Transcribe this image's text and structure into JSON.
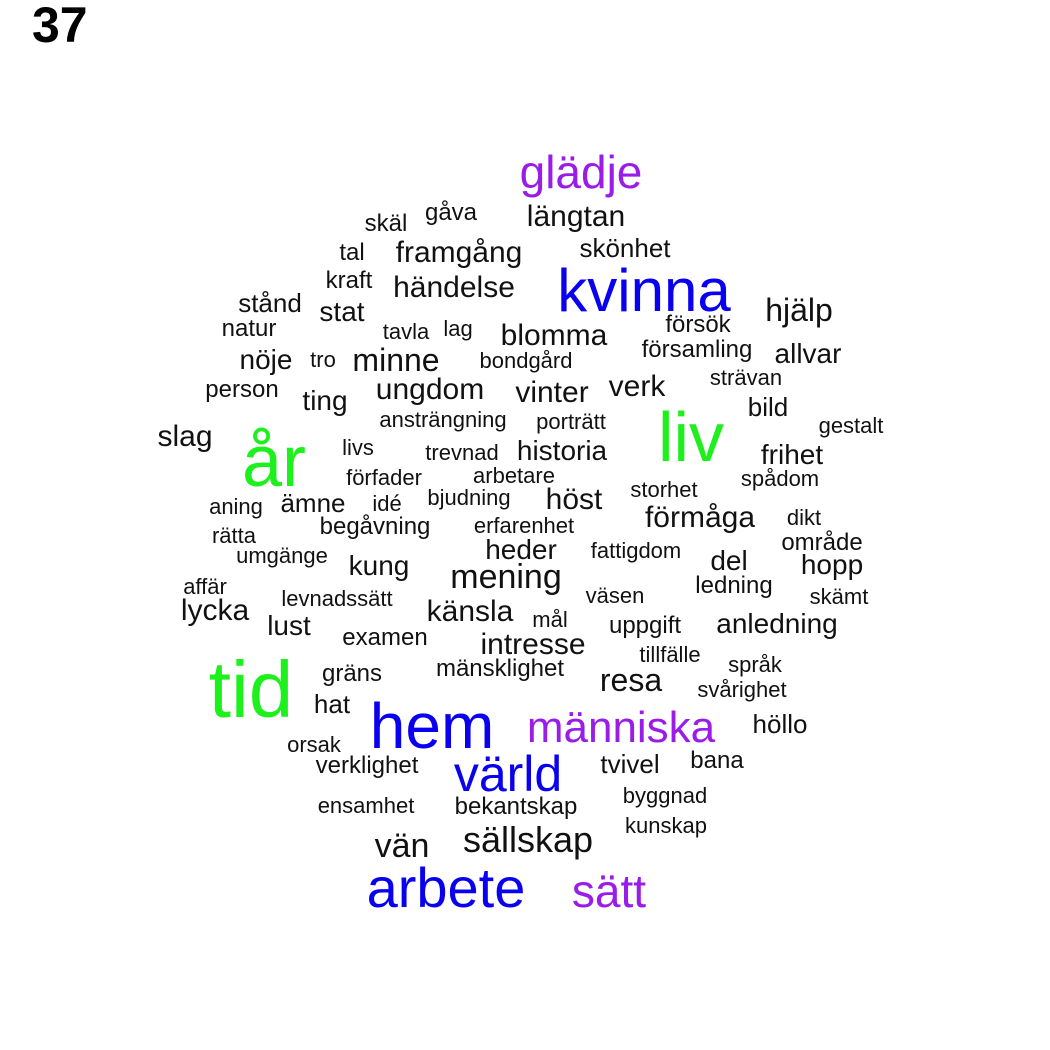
{
  "panel_label": "37",
  "colors": {
    "green": "#1ef01e",
    "blue": "#0a00f0",
    "purple": "#9a1ce8",
    "black": "#111111"
  },
  "words": [
    {
      "text": "glädje",
      "color": "purple"
    },
    {
      "text": "skäl",
      "color": "black"
    },
    {
      "text": "gåva",
      "color": "black"
    },
    {
      "text": "längtan",
      "color": "black"
    },
    {
      "text": "tal",
      "color": "black"
    },
    {
      "text": "framgång",
      "color": "black"
    },
    {
      "text": "skönhet",
      "color": "black"
    },
    {
      "text": "kraft",
      "color": "black"
    },
    {
      "text": "händelse",
      "color": "black"
    },
    {
      "text": "kvinna",
      "color": "blue"
    },
    {
      "text": "stånd",
      "color": "black"
    },
    {
      "text": "stat",
      "color": "black"
    },
    {
      "text": "hjälp",
      "color": "black"
    },
    {
      "text": "natur",
      "color": "black"
    },
    {
      "text": "tavla",
      "color": "black"
    },
    {
      "text": "lag",
      "color": "black"
    },
    {
      "text": "blomma",
      "color": "black"
    },
    {
      "text": "försök",
      "color": "black"
    },
    {
      "text": "nöje",
      "color": "black"
    },
    {
      "text": "tro",
      "color": "black"
    },
    {
      "text": "minne",
      "color": "black"
    },
    {
      "text": "bondgård",
      "color": "black"
    },
    {
      "text": "församling",
      "color": "black"
    },
    {
      "text": "allvar",
      "color": "black"
    },
    {
      "text": "strävan",
      "color": "black"
    },
    {
      "text": "person",
      "color": "black"
    },
    {
      "text": "ting",
      "color": "black"
    },
    {
      "text": "ungdom",
      "color": "black"
    },
    {
      "text": "vinter",
      "color": "black"
    },
    {
      "text": "verk",
      "color": "black"
    },
    {
      "text": "bild",
      "color": "black"
    },
    {
      "text": "ansträngning",
      "color": "black"
    },
    {
      "text": "porträtt",
      "color": "black"
    },
    {
      "text": "liv",
      "color": "green"
    },
    {
      "text": "gestalt",
      "color": "black"
    },
    {
      "text": "slag",
      "color": "black"
    },
    {
      "text": "år",
      "color": "green"
    },
    {
      "text": "livs",
      "color": "black"
    },
    {
      "text": "trevnad",
      "color": "black"
    },
    {
      "text": "historia",
      "color": "black"
    },
    {
      "text": "frihet",
      "color": "black"
    },
    {
      "text": "förfader",
      "color": "black"
    },
    {
      "text": "arbetare",
      "color": "black"
    },
    {
      "text": "spådom",
      "color": "black"
    },
    {
      "text": "storhet",
      "color": "black"
    },
    {
      "text": "aning",
      "color": "black"
    },
    {
      "text": "ämne",
      "color": "black"
    },
    {
      "text": "idé",
      "color": "black"
    },
    {
      "text": "bjudning",
      "color": "black"
    },
    {
      "text": "höst",
      "color": "black"
    },
    {
      "text": "förmåga",
      "color": "black"
    },
    {
      "text": "dikt",
      "color": "black"
    },
    {
      "text": "rätta",
      "color": "black"
    },
    {
      "text": "begåvning",
      "color": "black"
    },
    {
      "text": "erfarenhet",
      "color": "black"
    },
    {
      "text": "område",
      "color": "black"
    },
    {
      "text": "umgänge",
      "color": "black"
    },
    {
      "text": "heder",
      "color": "black"
    },
    {
      "text": "fattigdom",
      "color": "black"
    },
    {
      "text": "del",
      "color": "black"
    },
    {
      "text": "hopp",
      "color": "black"
    },
    {
      "text": "kung",
      "color": "black"
    },
    {
      "text": "mening",
      "color": "black"
    },
    {
      "text": "affär",
      "color": "black"
    },
    {
      "text": "ledning",
      "color": "black"
    },
    {
      "text": "levnadssätt",
      "color": "black"
    },
    {
      "text": "väsen",
      "color": "black"
    },
    {
      "text": "skämt",
      "color": "black"
    },
    {
      "text": "lycka",
      "color": "black"
    },
    {
      "text": "känsla",
      "color": "black"
    },
    {
      "text": "mål",
      "color": "black"
    },
    {
      "text": "lust",
      "color": "black"
    },
    {
      "text": "uppgift",
      "color": "black"
    },
    {
      "text": "anledning",
      "color": "black"
    },
    {
      "text": "examen",
      "color": "black"
    },
    {
      "text": "intresse",
      "color": "black"
    },
    {
      "text": "tillfälle",
      "color": "black"
    },
    {
      "text": "språk",
      "color": "black"
    },
    {
      "text": "tid",
      "color": "green"
    },
    {
      "text": "gräns",
      "color": "black"
    },
    {
      "text": "mänsklighet",
      "color": "black"
    },
    {
      "text": "resa",
      "color": "black"
    },
    {
      "text": "svårighet",
      "color": "black"
    },
    {
      "text": "hat",
      "color": "black"
    },
    {
      "text": "hem",
      "color": "blue"
    },
    {
      "text": "människa",
      "color": "purple"
    },
    {
      "text": "höllo",
      "color": "black"
    },
    {
      "text": "orsak",
      "color": "black"
    },
    {
      "text": "verklighet",
      "color": "black"
    },
    {
      "text": "värld",
      "color": "blue"
    },
    {
      "text": "tvivel",
      "color": "black"
    },
    {
      "text": "bana",
      "color": "black"
    },
    {
      "text": "byggnad",
      "color": "black"
    },
    {
      "text": "ensamhet",
      "color": "black"
    },
    {
      "text": "bekantskap",
      "color": "black"
    },
    {
      "text": "kunskap",
      "color": "black"
    },
    {
      "text": "sällskap",
      "color": "black"
    },
    {
      "text": "vän",
      "color": "black"
    },
    {
      "text": "arbete",
      "color": "blue"
    },
    {
      "text": "sätt",
      "color": "purple"
    }
  ]
}
